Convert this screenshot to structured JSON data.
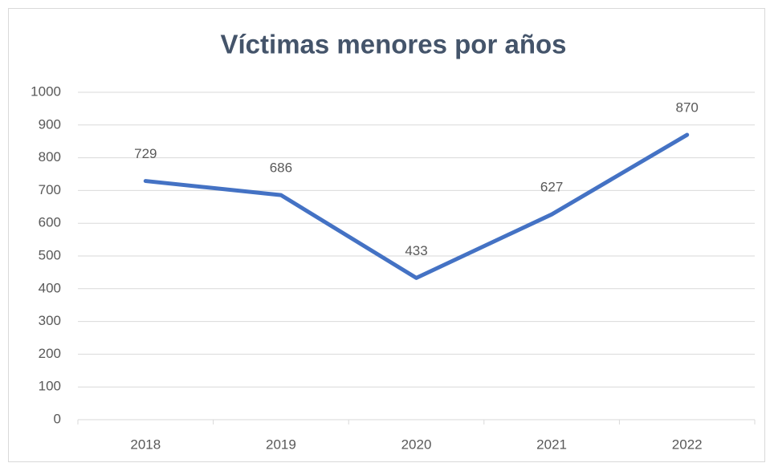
{
  "chart_data": {
    "type": "line",
    "title": "Víctimas menores por años",
    "categories": [
      "2018",
      "2019",
      "2020",
      "2021",
      "2022"
    ],
    "values": [
      729,
      686,
      433,
      627,
      870
    ],
    "color": "#4472c4",
    "ylim": [
      0,
      1000
    ],
    "yticks": [
      0,
      100,
      200,
      300,
      400,
      500,
      600,
      700,
      800,
      900,
      1000
    ],
    "grid": true
  }
}
